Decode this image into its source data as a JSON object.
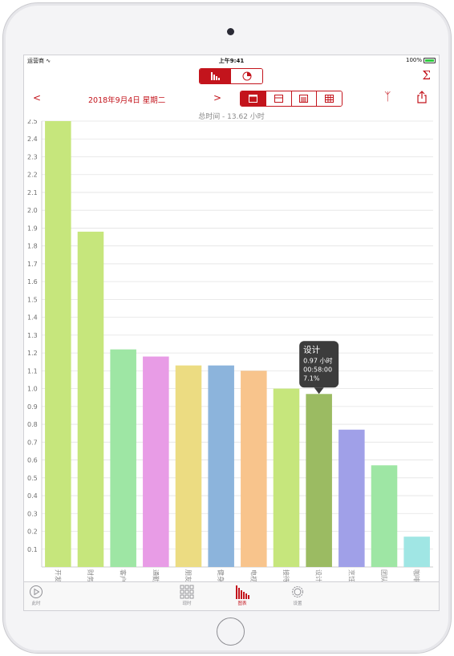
{
  "status": {
    "carrier": "运营商",
    "time": "上午9:41",
    "battery": "100%"
  },
  "header": {
    "sigma_symbol": "Σ"
  },
  "nav": {
    "prev": "<",
    "next": ">",
    "date": "2018年9月4日 星期二"
  },
  "summary": {
    "total_label": "总时间 - 13.62 小时"
  },
  "tooltip": {
    "title": "设计",
    "hours": "0.97 小时",
    "duration": "00:58:00",
    "percent": "7.1%"
  },
  "colors": {
    "accent": "#c3141c",
    "grid": "#e3e3e3",
    "selected_bar": "#9bbb62"
  },
  "chart_data": {
    "type": "bar",
    "categories": [
      "开发",
      "财务",
      "客户",
      "通勤",
      "朋友",
      "健身",
      "电视",
      "接待",
      "设计",
      "烹饪",
      "团队",
      "咖啡"
    ],
    "values": [
      2.5,
      1.88,
      1.22,
      1.18,
      1.13,
      1.13,
      1.1,
      1.0,
      0.97,
      0.77,
      0.57,
      0.17
    ],
    "colors": [
      "#c6e67c",
      "#c6e67c",
      "#9ee6a4",
      "#e89ce6",
      "#ecdc82",
      "#8cb4dc",
      "#f8c48c",
      "#c6e67c",
      "#9bbb62",
      "#a0a0e8",
      "#9ee6a4",
      "#a0e6e4"
    ],
    "ylim": [
      0,
      2.5
    ],
    "yticks": [
      "0.1",
      "0.2",
      "0.3",
      "0.4",
      "0.5",
      "0.6",
      "0.7",
      "0.8",
      "0.9",
      "1.0",
      "1.1",
      "1.2",
      "1.3",
      "1.4",
      "1.5",
      "1.6",
      "1.7",
      "1.8",
      "1.9",
      "2.0",
      "2.1",
      "2.2",
      "2.3",
      "2.4",
      "2.5"
    ],
    "grid": true,
    "selected_index": 8
  },
  "tabs": [
    {
      "label": "此时",
      "icon": "play-circle-icon"
    },
    {
      "label": "现时",
      "icon": "grid-icon"
    },
    {
      "label": "图表",
      "icon": "bar-chart-icon"
    },
    {
      "label": "设置",
      "icon": "gear-icon"
    }
  ]
}
